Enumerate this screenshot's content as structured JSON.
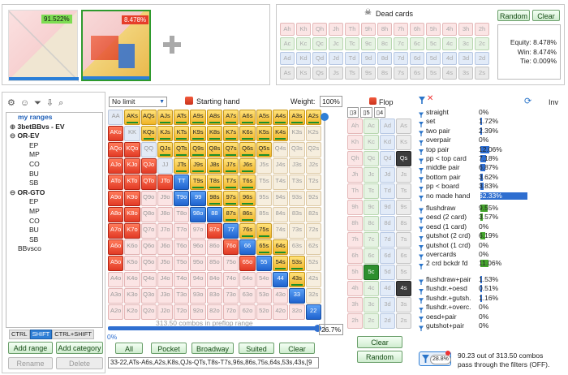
{
  "top": {
    "equity_left": "91.522%",
    "equity_right": "8.478%"
  },
  "dead_cards": {
    "title": "Dead cards",
    "random_label": "Random",
    "clear_label": "Clear",
    "rows": [
      [
        "Ah",
        "Kh",
        "Qh",
        "Jh",
        "Th",
        "9h",
        "8h",
        "7h",
        "6h",
        "5h",
        "4h",
        "3h",
        "2h"
      ],
      [
        "Ac",
        "Kc",
        "Qc",
        "Jc",
        "Tc",
        "9c",
        "8c",
        "7c",
        "6c",
        "5c",
        "4c",
        "3c",
        "2c"
      ],
      [
        "Ad",
        "Kd",
        "Qd",
        "Jd",
        "Td",
        "9d",
        "8d",
        "7d",
        "6d",
        "5d",
        "4d",
        "3d",
        "2d"
      ],
      [
        "As",
        "Ks",
        "Qs",
        "Js",
        "Ts",
        "9s",
        "8s",
        "7s",
        "6s",
        "5s",
        "4s",
        "3s",
        "2s"
      ]
    ],
    "equity": "Equity: 8.478%",
    "win": "Win: 8.474%",
    "tie": "Tie: 0.009%"
  },
  "ranges": {
    "title": "my ranges",
    "items": [
      {
        "label": "3betBBvs - EV",
        "level": 1,
        "bold": true,
        "prefix": "+"
      },
      {
        "label": "OR-EV",
        "level": 1,
        "bold": true,
        "prefix": "–"
      },
      {
        "label": "EP",
        "level": 2
      },
      {
        "label": "MP",
        "level": 2
      },
      {
        "label": "CO",
        "level": 2
      },
      {
        "label": "BU",
        "level": 2
      },
      {
        "label": "SB",
        "level": 2
      },
      {
        "label": "OR-GTO",
        "level": 1,
        "bold": true,
        "prefix": "–"
      },
      {
        "label": "EP",
        "level": 2
      },
      {
        "label": "MP",
        "level": 2
      },
      {
        "label": "CO",
        "level": 2
      },
      {
        "label": "BU",
        "level": 2
      },
      {
        "label": "SB",
        "level": 2
      },
      {
        "label": "BBvsco",
        "level": 1
      }
    ],
    "modifiers": [
      "CTRL",
      "SHIFT",
      "CTRL+SHIFT"
    ],
    "add_range": "Add range",
    "add_category": "Add category",
    "rename": "Rename",
    "delete": "Delete"
  },
  "hand_panel": {
    "limit": "No limit",
    "starting_hand": "Starting hand",
    "weight_label": "Weight:",
    "weight_value": "100%",
    "combos_text": "313.50 combos in preflop range",
    "slider_min": "0%",
    "slider_value": "26.7%",
    "quick_buttons": [
      "All",
      "Pocket",
      "Broadway",
      "Suited",
      "Clear"
    ],
    "range_text": "33-22,ATs-A6s,A2s,K8s,QJs-QTs,T8s-T7s,96s,86s,75s,64s,53s,43s,[9"
  },
  "hand_grid": [
    [
      "AA",
      "AKs",
      "AQs",
      "AJs",
      "ATs",
      "A9s",
      "A8s",
      "A7s",
      "A6s",
      "A5s",
      "A4s",
      "A3s",
      "A2s"
    ],
    [
      "AKo",
      "KK",
      "KQs",
      "KJs",
      "KTs",
      "K9s",
      "K8s",
      "K7s",
      "K6s",
      "K5s",
      "K4s",
      "K3s",
      "K2s"
    ],
    [
      "AQo",
      "KQo",
      "QQ",
      "QJs",
      "QTs",
      "Q9s",
      "Q8s",
      "Q7s",
      "Q6s",
      "Q5s",
      "Q4s",
      "Q3s",
      "Q2s"
    ],
    [
      "AJo",
      "KJo",
      "QJo",
      "JJ",
      "JTs",
      "J9s",
      "J8s",
      "J7s",
      "J6s",
      "J5s",
      "J4s",
      "J3s",
      "J2s"
    ],
    [
      "ATo",
      "KTo",
      "QTo",
      "JTo",
      "TT",
      "T9s",
      "T8s",
      "T7s",
      "T6s",
      "T5s",
      "T4s",
      "T3s",
      "T2s"
    ],
    [
      "A9o",
      "K9o",
      "Q9o",
      "J9o",
      "T9o",
      "99",
      "98s",
      "97s",
      "96s",
      "95s",
      "94s",
      "93s",
      "92s"
    ],
    [
      "A8o",
      "K8o",
      "Q8o",
      "J8o",
      "T8o",
      "98o",
      "88",
      "87s",
      "86s",
      "85s",
      "84s",
      "83s",
      "82s"
    ],
    [
      "A7o",
      "K7o",
      "Q7o",
      "J7o",
      "T7o",
      "97o",
      "87o",
      "77",
      "76s",
      "75s",
      "74s",
      "73s",
      "72s"
    ],
    [
      "A6o",
      "K6o",
      "Q6o",
      "J6o",
      "T6o",
      "96o",
      "86o",
      "76o",
      "66",
      "65s",
      "64s",
      "63s",
      "62s"
    ],
    [
      "A5o",
      "K5o",
      "Q5o",
      "J5o",
      "T5o",
      "95o",
      "85o",
      "75o",
      "65o",
      "55",
      "54s",
      "53s",
      "52s"
    ],
    [
      "A4o",
      "K4o",
      "Q4o",
      "J4o",
      "T4o",
      "94o",
      "84o",
      "74o",
      "64o",
      "54o",
      "44",
      "43s",
      "42s"
    ],
    [
      "A3o",
      "K3o",
      "Q3o",
      "J3o",
      "T3o",
      "93o",
      "83o",
      "73o",
      "63o",
      "53o",
      "43o",
      "33",
      "32s"
    ],
    [
      "A2o",
      "K2o",
      "Q2o",
      "J2o",
      "T2o",
      "92o",
      "82o",
      "72o",
      "62o",
      "52o",
      "42o",
      "32o",
      "22"
    ]
  ],
  "flop": {
    "title": "Flop",
    "tabs": [
      "3",
      "5",
      "4"
    ],
    "suits": [
      "h",
      "c",
      "d",
      "s"
    ],
    "ranks": [
      "A",
      "K",
      "Q",
      "J",
      "T",
      "9",
      "8",
      "7",
      "6",
      "5",
      "4",
      "3",
      "2"
    ],
    "selected": [
      "Qs",
      "5c",
      "4s"
    ],
    "clear_label": "Clear",
    "random_label": "Random"
  },
  "stats": {
    "inv_label": "Inv",
    "made": [
      {
        "label": "straight",
        "value": "0%",
        "pct": 0
      },
      {
        "label": "set",
        "value": "1.72%",
        "pct": 1.72
      },
      {
        "label": "two pair",
        "value": "2.39%",
        "pct": 2.39
      },
      {
        "label": "overpair",
        "value": "0%",
        "pct": 0
      },
      {
        "label": "top pair",
        "value": "12.06%",
        "pct": 12.06
      },
      {
        "label": "pp < top card",
        "value": "7.18%",
        "pct": 7.18
      },
      {
        "label": "middle pair",
        "value": "6.87%",
        "pct": 6.87
      },
      {
        "label": "bottom pair",
        "value": "3.62%",
        "pct": 3.62
      },
      {
        "label": "pp < board",
        "value": "3.83%",
        "pct": 3.83
      },
      {
        "label": "no made hand",
        "value": "62.33%",
        "pct": 62.33
      }
    ],
    "draws": [
      {
        "label": "flushdraw",
        "value": "9.55%",
        "pct": 9.55
      },
      {
        "label": "oesd (2 card)",
        "value": "3.57%",
        "pct": 3.57
      },
      {
        "label": "oesd (1 card)",
        "value": "0%",
        "pct": 0
      },
      {
        "label": "gutshot (2 crd)",
        "value": "6.19%",
        "pct": 6.19
      },
      {
        "label": "gutshot (1 crd)",
        "value": "0%",
        "pct": 0
      },
      {
        "label": "overcards",
        "value": "0%",
        "pct": 0
      },
      {
        "label": "2 crd bckdr fd",
        "value": "11.06%",
        "pct": 11.06
      }
    ],
    "combo_draws": [
      {
        "label": "flushdraw+pair",
        "value": "1.53%",
        "pct": 1.53
      },
      {
        "label": "flushdr.+oesd",
        "value": "0.51%",
        "pct": 0.51
      },
      {
        "label": "flushdr.+gutsh.",
        "value": "1.16%",
        "pct": 1.16
      },
      {
        "label": "flushdr.+overc.",
        "value": "0%",
        "pct": 0
      },
      {
        "label": "oesd+pair",
        "value": "0%",
        "pct": 0
      },
      {
        "label": "gutshot+pair",
        "value": "0%",
        "pct": 0
      }
    ],
    "filter_badge": "28.8%",
    "summary_line1": "90.23 out of 313.50 combos",
    "summary_line2": "pass through the filters (OFF)."
  }
}
